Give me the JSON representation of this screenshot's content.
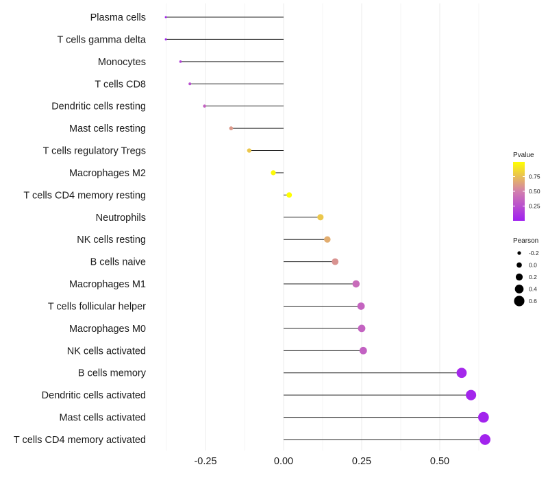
{
  "chart_data": {
    "type": "lollipop",
    "title": "",
    "xlabel": "",
    "ylabel": "",
    "xlim": [
      -0.38,
      0.66
    ],
    "grid": "vertical",
    "x_ticks": [
      {
        "value": -0.25,
        "label": "-0.25"
      },
      {
        "value": 0.0,
        "label": "0.00"
      },
      {
        "value": 0.25,
        "label": "0.25"
      },
      {
        "value": 0.5,
        "label": "0.50"
      }
    ],
    "categories": [
      "Plasma cells",
      "T cells gamma delta",
      "Monocytes",
      "T cells CD8",
      "Dendritic cells resting",
      "Mast cells resting",
      "T cells regulatory  Tregs ",
      "Macrophages M2",
      "T cells CD4 memory resting",
      "Neutrophils",
      "NK cells resting",
      "B cells naive",
      "Macrophages M1",
      "T cells follicular helper",
      "Macrophages M0",
      "NK cells activated",
      "B cells memory",
      "Dendritic cells activated",
      "Mast cells activated",
      "T cells CD4 memory activated"
    ],
    "pearson": [
      -0.377,
      -0.377,
      -0.33,
      -0.3,
      -0.253,
      -0.168,
      -0.11,
      -0.033,
      0.018,
      0.118,
      0.14,
      0.165,
      0.232,
      0.248,
      0.25,
      0.255,
      0.57,
      0.6,
      0.64,
      0.645
    ],
    "pvalue": [
      0.02,
      0.02,
      0.18,
      0.25,
      0.35,
      0.6,
      0.78,
      0.98,
      1.0,
      0.78,
      0.68,
      0.58,
      0.4,
      0.36,
      0.35,
      0.34,
      0.04,
      0.03,
      0.02,
      0.02
    ],
    "size_legend": {
      "title": "Pearson",
      "values": [
        -0.2,
        0.0,
        0.2,
        0.4,
        0.6
      ],
      "labels": [
        "-0.2",
        "0.0",
        "0.2",
        "0.4",
        "0.6"
      ]
    },
    "color_legend": {
      "title": "Pvalue",
      "labels": [
        "0.75",
        "0.50",
        "0.25"
      ],
      "values": [
        0.75,
        0.5,
        0.25
      ],
      "range": [
        0,
        1
      ],
      "low_color": "#a020f0",
      "mid_color": "#d27fad",
      "high_color": "#ffff00"
    }
  }
}
